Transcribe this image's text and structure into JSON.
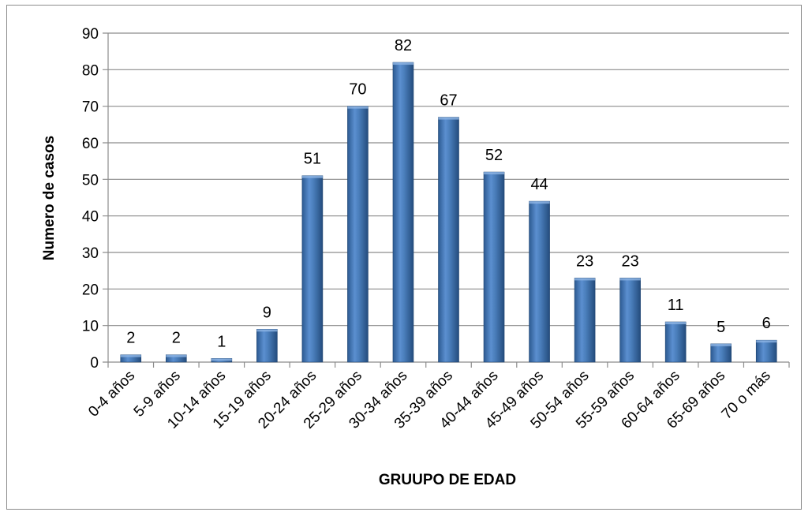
{
  "chart_data": {
    "type": "bar",
    "categories": [
      "0-4 años",
      "5-9 años",
      "10-14 años",
      "15-19 años",
      "20-24 años",
      "25-29 años",
      "30-34 años",
      "35-39 años",
      "40-44 años",
      "45-49 años",
      "50-54 años",
      "55-59 años",
      "60-64 años",
      "65-69 años",
      "70 o más"
    ],
    "values": [
      2,
      2,
      1,
      9,
      51,
      70,
      82,
      67,
      52,
      44,
      23,
      23,
      11,
      5,
      6
    ],
    "title": "",
    "xlabel": "GRUUPO DE EDAD",
    "ylabel": "Numero de casos",
    "ylim": [
      0,
      90
    ],
    "yticks": [
      0,
      10,
      20,
      30,
      40,
      50,
      60,
      70,
      80,
      90
    ],
    "grid": true,
    "legend": "none",
    "colors": {
      "bar": "#4a7ebb",
      "bar_dark": "#2c5a91",
      "bar_light": "#7aa6dc",
      "grid": "#8c8c8c"
    }
  }
}
